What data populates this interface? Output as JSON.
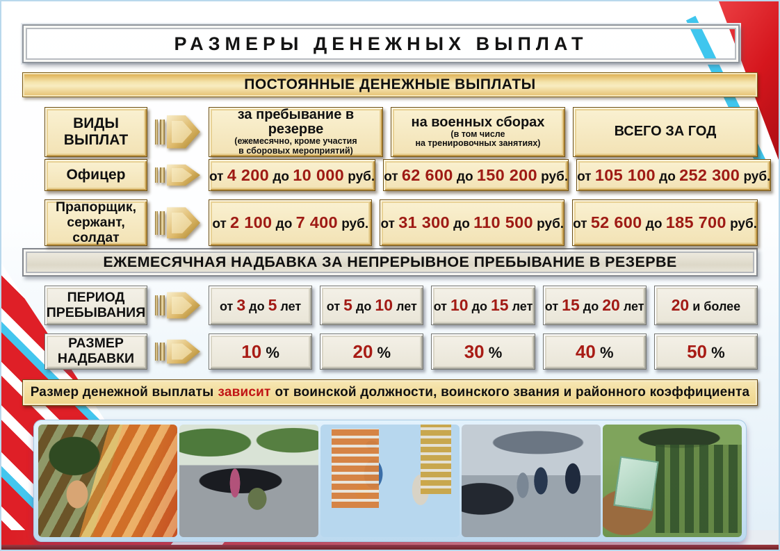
{
  "page": {
    "title": "РАЗМЕРЫ ДЕНЕЖНЫХ ВЫПЛАТ"
  },
  "words": {
    "from": "от",
    "to": "до",
    "rub": "руб.",
    "years": "лет",
    "percent": "%"
  },
  "permanent": {
    "header": "ПОСТОЯННЫЕ ДЕНЕЖНЫЕ ВЫПЛАТЫ",
    "kinds": {
      "line1": "ВИДЫ",
      "line2": "ВЫПЛАТ"
    },
    "columns": [
      {
        "title": "за пребывание в резерве",
        "note1": "(ежемесячно, кроме участия",
        "note2": "в сборовых мероприятий)"
      },
      {
        "title": "на военных сборах",
        "note1": "(в том числе",
        "note2": "на тренировочных занятиях)"
      },
      {
        "title": "ВСЕГО ЗА ГОД"
      }
    ],
    "rows": [
      {
        "label": "Офицер",
        "reserve": {
          "a": "4 200",
          "b": "10 000"
        },
        "camp": {
          "a": "62 600",
          "b": "150 200"
        },
        "year": {
          "a": "105 100",
          "b": "252 300"
        }
      },
      {
        "label1": "Прапорщик,",
        "label2": "сержант, солдат",
        "reserve": {
          "a": "2 100",
          "b": "7 400"
        },
        "camp": {
          "a": "31 300",
          "b": "110 500"
        },
        "year": {
          "a": "52 600",
          "b": "185 700"
        }
      }
    ]
  },
  "allowance": {
    "header": "ЕЖЕМЕСЯЧНАЯ НАДБАВКА ЗА НЕПРЕРЫВНОЕ ПРЕБЫВАНИЕ В РЕЗЕРВЕ",
    "period_label": {
      "line1": "ПЕРИОД",
      "line2": "ПРЕБЫВАНИЯ"
    },
    "rate_label": {
      "line1": "РАЗМЕР",
      "line2": "НАДБАВКИ"
    },
    "periods": [
      {
        "a": "3",
        "b": "5"
      },
      {
        "a": "5",
        "b": "10"
      },
      {
        "a": "10",
        "b": "15"
      },
      {
        "a": "15",
        "b": "20"
      },
      {
        "a": "20",
        "note": "и более"
      }
    ],
    "rates": [
      "10",
      "20",
      "30",
      "40",
      "50"
    ]
  },
  "note": {
    "pre": "Размер денежной выплаты",
    "highlight": "зависит",
    "post": "от воинской должности, воинского звания и районного коэффициента"
  },
  "photos": [
    {
      "name": "soldier-portrait-with-banknotes"
    },
    {
      "name": "soldier-marriage-proposal-near-car"
    },
    {
      "name": "paratrooper-family-with-baby-near-apartments"
    },
    {
      "name": "couple-receiving-car-keys"
    },
    {
      "name": "hand-with-banknote-and-marching-troops"
    }
  ],
  "colors": {
    "accent_red_text": "#9e1a14",
    "highlight_red": "#c01414",
    "ribbon_red": "#d5161d",
    "ribbon_cyan": "#3fc6ee",
    "gold_fill": "#f2e2b4",
    "stone_fill": "#e9e5d7"
  }
}
